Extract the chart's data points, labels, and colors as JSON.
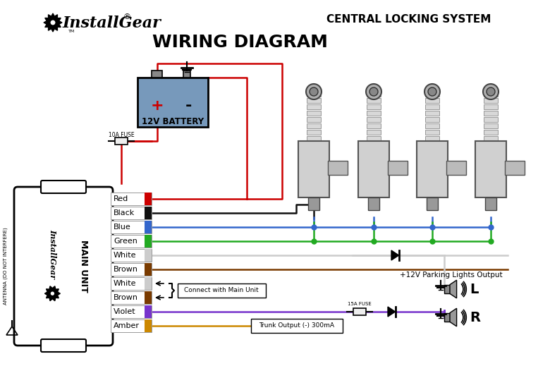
{
  "title1": "CENTRAL LOCKING SYSTEM",
  "title2": "WIRING DIAGRAM",
  "brand": "InstallGear",
  "reg_mark": "®",
  "wire_labels": [
    "Red",
    "Black",
    "Blue",
    "Green",
    "White",
    "Brown",
    "White",
    "Brown",
    "Violet",
    "Amber"
  ],
  "wire_colors": [
    "#cc0000",
    "#111111",
    "#3366cc",
    "#22aa22",
    "#cccccc",
    "#7a3b00",
    "#cccccc",
    "#7a3b00",
    "#7733cc",
    "#cc8800"
  ],
  "parking_label": "+12V Parking Lights Output",
  "trunk_label": "Trunk Output (-) 300mA",
  "connect_label": "Connect with Main Unit",
  "fuse_label1": "10A FUSE",
  "fuse_label2": "15A FUSE",
  "battery_label": "12V BATTERY",
  "antenna_label": "ANTENNA (DO NOT INTERFERE)",
  "main_unit_label": "MAIN UNIT",
  "bg_color": "#ffffff",
  "battery_box_color": "#7799bb",
  "wire_label_L": "L",
  "wire_label_R": "R",
  "figw": 7.8,
  "figh": 5.36,
  "dpi": 100
}
